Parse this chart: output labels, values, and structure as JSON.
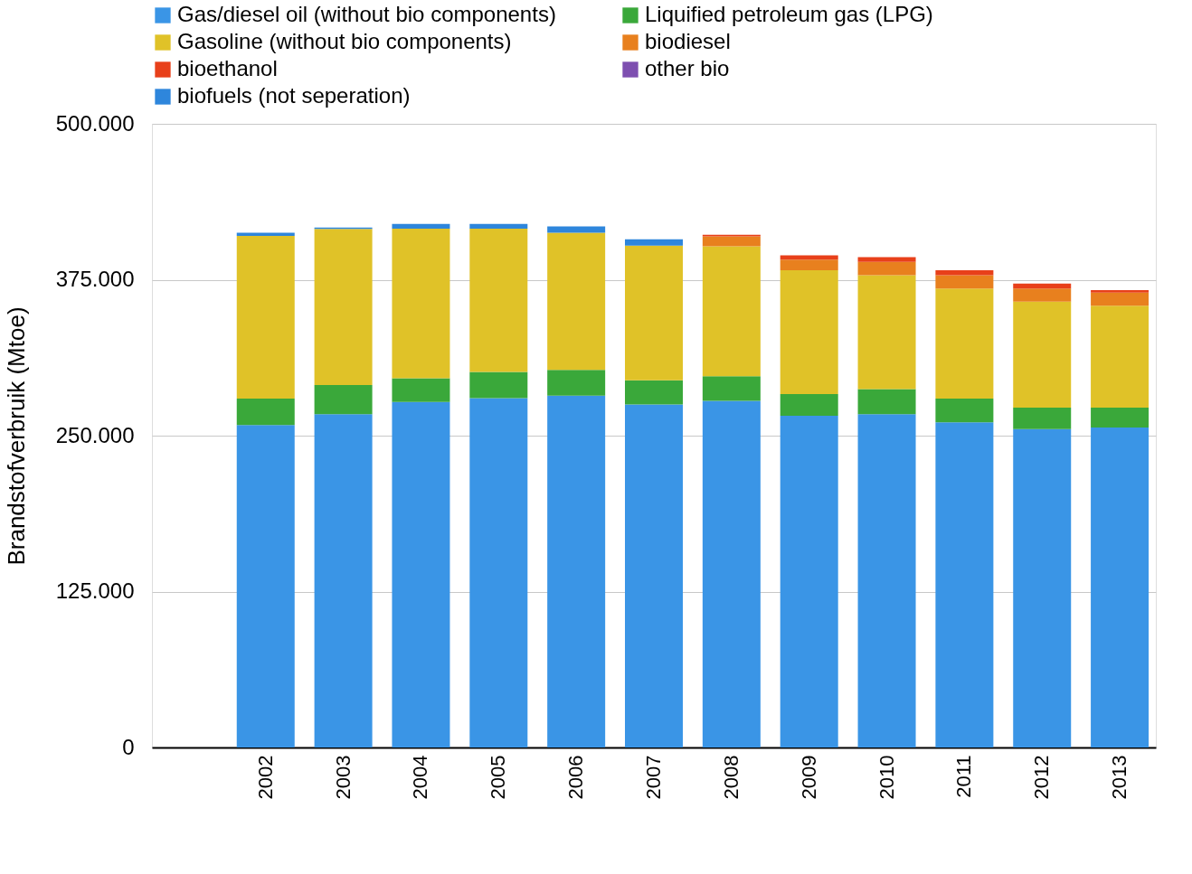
{
  "chart_data": {
    "type": "bar",
    "stacked": true,
    "ylabel": "Brandstofverbruik (Mtoe)",
    "categories": [
      null,
      "2002",
      "2003",
      "2004",
      "2005",
      "2006",
      "2007",
      "2008",
      "2009",
      "2010",
      "2011",
      "2012",
      "2013"
    ],
    "series": [
      {
        "name": "Gas/diesel oil (without bio components)",
        "color": "#3a95e6",
        "values": [
          null,
          258600,
          267200,
          277000,
          280000,
          282000,
          275000,
          277900,
          265900,
          267200,
          260600,
          255300,
          256600
        ]
      },
      {
        "name": "Liquified petroleum gas (LPG)",
        "color": "#3aa83a",
        "values": [
          null,
          21200,
          23400,
          19000,
          21100,
          20800,
          19400,
          19800,
          17500,
          20100,
          19200,
          17200,
          15900
        ]
      },
      {
        "name": "Gasoline (without bio components)",
        "color": "#e0c228",
        "values": [
          null,
          130300,
          125100,
          120000,
          114900,
          109900,
          107900,
          104200,
          99200,
          91300,
          88200,
          84900,
          81600
        ]
      },
      {
        "name": "biodiesel",
        "color": "#e8801e",
        "values": [
          null,
          null,
          null,
          null,
          null,
          null,
          null,
          7900,
          8600,
          10700,
          10600,
          10600,
          10600
        ]
      },
      {
        "name": "bioethanol",
        "color": "#e8401a",
        "values": [
          null,
          null,
          null,
          null,
          null,
          null,
          null,
          1300,
          3400,
          3900,
          4000,
          4000,
          2000
        ]
      },
      {
        "name": "other bio",
        "color": "#7e4fb0",
        "values": [
          null,
          null,
          null,
          null,
          null,
          null,
          null,
          null,
          null,
          null,
          null,
          null,
          null
        ]
      },
      {
        "name": "biofuels (not seperation)",
        "color": "#2e86dc",
        "values": [
          null,
          2500,
          1100,
          3800,
          3800,
          5100,
          5100,
          null,
          null,
          null,
          null,
          null,
          null
        ]
      }
    ],
    "ylim": [
      0,
      500000
    ],
    "yticks": [
      0,
      {
        "value": 125000,
        "label": "125.000"
      },
      {
        "value": 250000,
        "label": "250.000"
      },
      {
        "value": 375000,
        "label": "375.000"
      },
      {
        "value": 500000,
        "label": "500.000"
      }
    ],
    "grid": "y",
    "legend": "top"
  }
}
